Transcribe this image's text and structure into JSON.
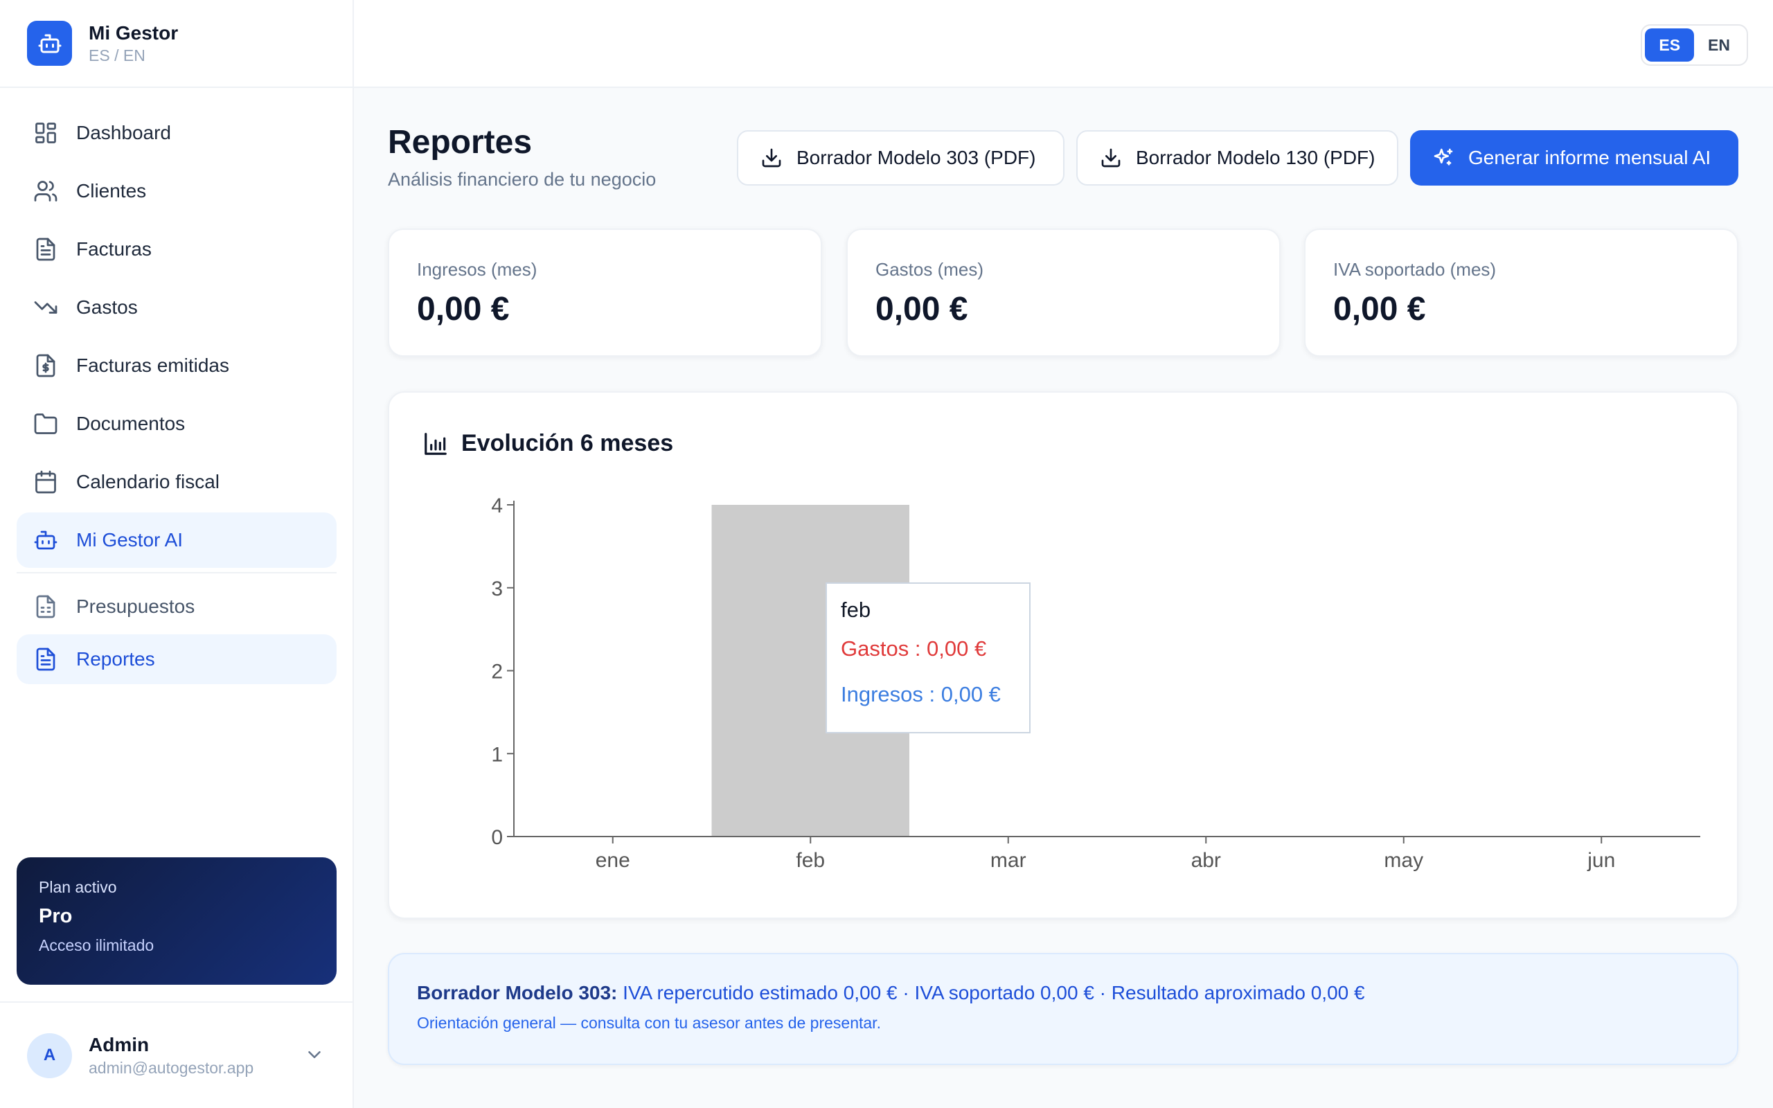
{
  "brand": {
    "name": "Mi Gestor",
    "sub": "ES / EN"
  },
  "lang": {
    "es": "ES",
    "en": "EN"
  },
  "nav": {
    "items": [
      {
        "label": "Dashboard",
        "icon": "dashboard-icon"
      },
      {
        "label": "Clientes",
        "icon": "users-icon"
      },
      {
        "label": "Facturas",
        "icon": "file-text-icon"
      },
      {
        "label": "Gastos",
        "icon": "trending-down-icon"
      },
      {
        "label": "Facturas emitidas",
        "icon": "receipt-icon"
      },
      {
        "label": "Documentos",
        "icon": "folder-icon"
      },
      {
        "label": "Calendario fiscal",
        "icon": "calendar-icon"
      },
      {
        "label": "Mi Gestor AI",
        "icon": "bot-icon"
      }
    ],
    "secondary": [
      {
        "label": "Presupuestos",
        "icon": "file-spreadsheet-icon"
      },
      {
        "label": "Reportes",
        "icon": "file-text-icon"
      }
    ]
  },
  "plan": {
    "title": "Plan activo",
    "name": "Pro",
    "desc": "Acceso ilimitado"
  },
  "user": {
    "initial": "A",
    "name": "Admin",
    "email": "admin@autogestor.app"
  },
  "header": {
    "title": "Reportes",
    "subtitle": "Análisis financiero de tu negocio"
  },
  "actions": {
    "modelo303": "Borrador Modelo 303 (PDF)",
    "modelo130": "Borrador Modelo 130 (PDF)",
    "ai_report": "Generar informe mensual AI"
  },
  "kpis": [
    {
      "label": "Ingresos (mes)",
      "value": "0,00 €"
    },
    {
      "label": "Gastos (mes)",
      "value": "0,00 €"
    },
    {
      "label": "IVA soportado (mes)",
      "value": "0,00 €"
    }
  ],
  "chart": {
    "title": "Evolución 6 meses",
    "tooltip": {
      "label": "feb",
      "gastos": "Gastos : 0,00 €",
      "ingresos": "Ingresos : 0,00 €"
    }
  },
  "chart_data": {
    "type": "bar",
    "categories": [
      "ene",
      "feb",
      "mar",
      "abr",
      "may",
      "jun"
    ],
    "series": [
      {
        "name": "Gastos",
        "values": [
          0,
          0,
          0,
          0,
          0,
          0
        ]
      },
      {
        "name": "Ingresos",
        "values": [
          0,
          0,
          0,
          0,
          0,
          0
        ]
      }
    ],
    "yticks": [
      0,
      1,
      2,
      3,
      4
    ],
    "ylim": [
      0,
      4
    ],
    "highlighted_category": "feb",
    "colors": {
      "gastos": "#e03a3a",
      "ingresos": "#3b7de0",
      "hover": "#cccccc"
    },
    "grid": false,
    "title": "",
    "xlabel": "",
    "ylabel": ""
  },
  "info": {
    "label": "Borrador Modelo 303:",
    "text": " IVA repercutido estimado 0,00 € · IVA soportado 0,00 € · Resultado aproximado 0,00 €",
    "note": "Orientación general — consulta con tu asesor antes de presentar."
  }
}
